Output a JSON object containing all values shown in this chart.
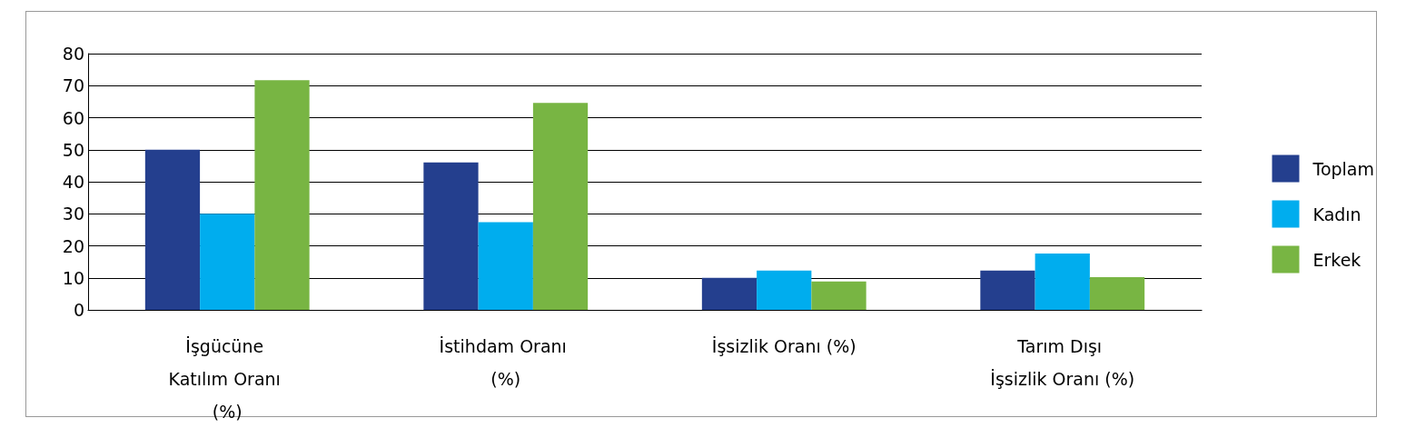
{
  "chart_data": {
    "type": "bar",
    "categories": [
      "İşgücüne Katılım Oranı (%)",
      "İstihdam Oranı (%)",
      "İşsizlik Oranı (%)",
      "Tarım Dışı İşsizlik Oranı (%)"
    ],
    "series": [
      {
        "name": "Toplam",
        "color": "#243f8e",
        "values": [
          50.0,
          46.0,
          10.0,
          12.3
        ]
      },
      {
        "name": "Kadın",
        "color": "#00adee",
        "values": [
          30.0,
          27.4,
          12.3,
          17.6
        ]
      },
      {
        "name": "Erkek",
        "color": "#78b543",
        "values": [
          71.7,
          64.6,
          8.9,
          10.2
        ]
      }
    ],
    "ylim": [
      0,
      80
    ],
    "yticks": [
      0,
      10,
      20,
      30,
      40,
      50,
      60,
      70,
      80
    ],
    "grid": "y",
    "legend": "right"
  }
}
